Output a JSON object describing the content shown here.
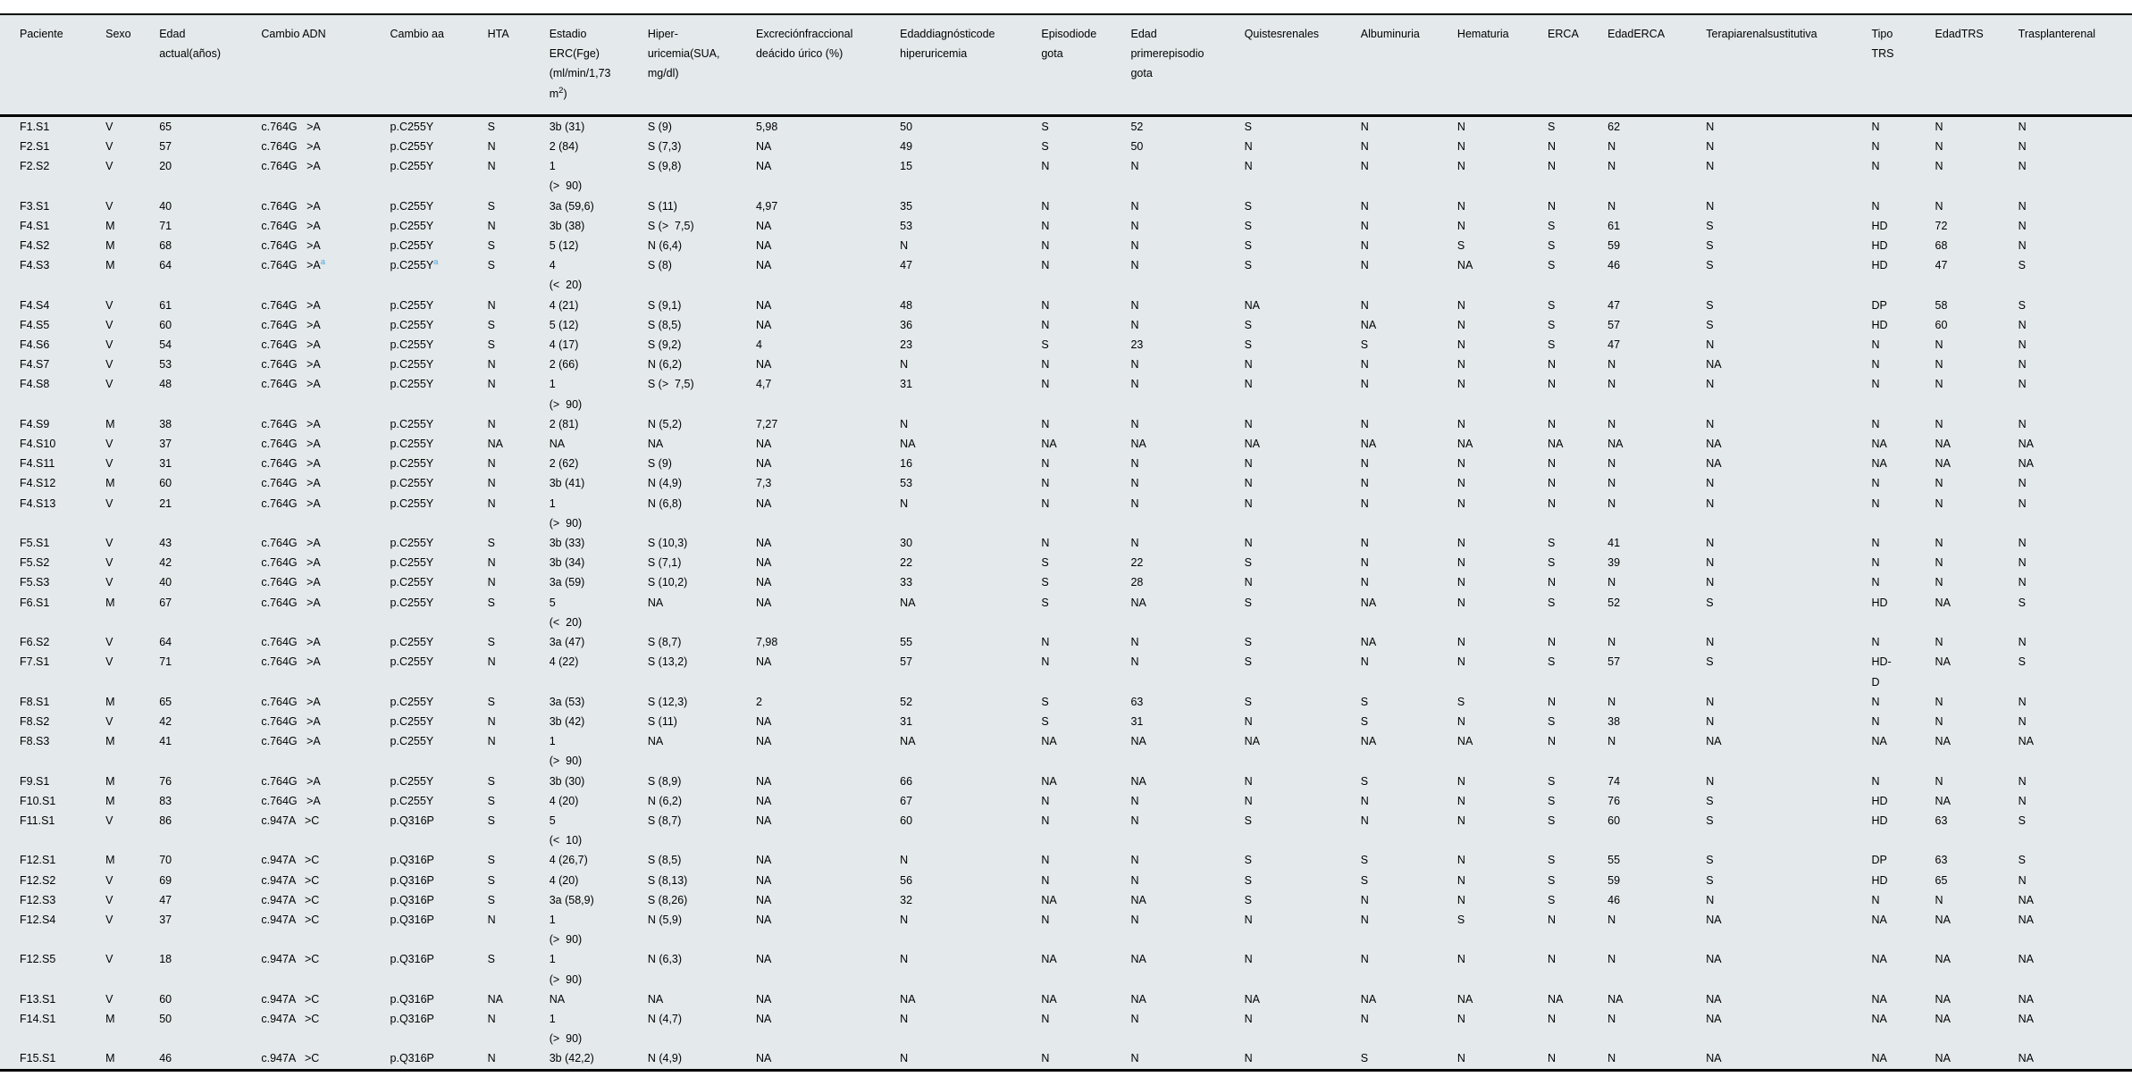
{
  "table": {
    "colors": {
      "background": "#e4e9eb",
      "border": "#000000",
      "text": "#000000",
      "footnote_marker": "#4ea7dc"
    },
    "footnote_marker": "a",
    "columns": [
      "Paciente",
      "Sexo",
      "Edad\nactual(años)",
      "Cambio ADN",
      "Cambio aa",
      "HTA",
      "Estadio\nERC(Fge)\n(ml/min/1,73\nm^2)",
      "Hiper-\nuricemia(SUA,\nmg/dl)",
      "Excreciónfraccional\ndeácido úrico (%)",
      "Edaddiagnósticode\nhiperuricemia",
      "Episodiode\ngota",
      "Edad\nprimerepisodio\ngota",
      "Quistesrenales",
      "Albuminuria",
      "Hematuria",
      "ERCA",
      "EdadERCA",
      "Terapiarenalsustitutiva",
      "Tipo\nTRS",
      "EdadTRS",
      "Trasplanterenal"
    ],
    "rows": [
      [
        "F1.S1",
        "V",
        "65",
        "c.764G   >A",
        "p.C255Y",
        "S",
        "3b (31)",
        "S (9)",
        "5,98",
        "50",
        "S",
        "52",
        "S",
        "N",
        "N",
        "S",
        "62",
        "N",
        "N",
        "N",
        "N"
      ],
      [
        "F2.S1",
        "V",
        "57",
        "c.764G   >A",
        "p.C255Y",
        "N",
        "2 (84)",
        "S (7,3)",
        "NA",
        "49",
        "S",
        "50",
        "N",
        "N",
        "N",
        "N",
        "N",
        "N",
        "N",
        "N",
        "N"
      ],
      [
        "F2.S2",
        "V",
        "20",
        "c.764G   >A",
        "p.C255Y",
        "N",
        "1\n(>  90)",
        "S (9,8)",
        "NA",
        "15",
        "N",
        "N",
        "N",
        "N",
        "N",
        "N",
        "N",
        "N",
        "N",
        "N",
        "N"
      ],
      [
        "F3.S1",
        "V",
        "40",
        "c.764G   >A",
        "p.C255Y",
        "S",
        "3a (59,6)",
        "S (11)",
        "4,97",
        "35",
        "N",
        "N",
        "S",
        "N",
        "N",
        "N",
        "N",
        "N",
        "N",
        "N",
        "N"
      ],
      [
        "F4.S1",
        "M",
        "71",
        "c.764G   >A",
        "p.C255Y",
        "N",
        "3b (38)",
        "S (>  7,5)",
        "NA",
        "53",
        "N",
        "N",
        "S",
        "N",
        "N",
        "S",
        "61",
        "S",
        "HD",
        "72",
        "N"
      ],
      [
        "F4.S2",
        "M",
        "68",
        "c.764G   >A",
        "p.C255Y",
        "S",
        "5 (12)",
        "N (6,4)",
        "NA",
        "N",
        "N",
        "N",
        "S",
        "N",
        "S",
        "S",
        "59",
        "S",
        "HD",
        "68",
        "N"
      ],
      [
        "F4.S3",
        "M",
        "64",
        "c.764G   >A^a",
        "p.C255Y^a",
        "S",
        "4\n(<  20)",
        "S (8)",
        "NA",
        "47",
        "N",
        "N",
        "S",
        "N",
        "NA",
        "S",
        "46",
        "S",
        "HD",
        "47",
        "S"
      ],
      [
        "F4.S4",
        "V",
        "61",
        "c.764G   >A",
        "p.C255Y",
        "N",
        "4 (21)",
        "S (9,1)",
        "NA",
        "48",
        "N",
        "N",
        "NA",
        "N",
        "N",
        "S",
        "47",
        "S",
        "DP",
        "58",
        "S"
      ],
      [
        "F4.S5",
        "V",
        "60",
        "c.764G   >A",
        "p.C255Y",
        "S",
        "5 (12)",
        "S (8,5)",
        "NA",
        "36",
        "N",
        "N",
        "S",
        "NA",
        "N",
        "S",
        "57",
        "S",
        "HD",
        "60",
        "N"
      ],
      [
        "F4.S6",
        "V",
        "54",
        "c.764G   >A",
        "p.C255Y",
        "S",
        "4 (17)",
        "S (9,2)",
        "4",
        "23",
        "S",
        "23",
        "S",
        "S",
        "N",
        "S",
        "47",
        "N",
        "N",
        "N",
        "N"
      ],
      [
        "F4.S7",
        "V",
        "53",
        "c.764G   >A",
        "p.C255Y",
        "N",
        "2 (66)",
        "N (6,2)",
        "NA",
        "N",
        "N",
        "N",
        "N",
        "N",
        "N",
        "N",
        "N",
        "NA",
        "N",
        "N",
        "N"
      ],
      [
        "F4.S8",
        "V",
        "48",
        "c.764G   >A",
        "p.C255Y",
        "N",
        "1\n(>  90)",
        "S (>  7,5)",
        "4,7",
        "31",
        "N",
        "N",
        "N",
        "N",
        "N",
        "N",
        "N",
        "N",
        "N",
        "N",
        "N"
      ],
      [
        "F4.S9",
        "M",
        "38",
        "c.764G   >A",
        "p.C255Y",
        "N",
        "2 (81)",
        "N (5,2)",
        "7,27",
        "N",
        "N",
        "N",
        "N",
        "N",
        "N",
        "N",
        "N",
        "N",
        "N",
        "N",
        "N"
      ],
      [
        "F4.S10",
        "V",
        "37",
        "c.764G   >A",
        "p.C255Y",
        "NA",
        "NA",
        "NA",
        "NA",
        "NA",
        "NA",
        "NA",
        "NA",
        "NA",
        "NA",
        "NA",
        "NA",
        "NA",
        "NA",
        "NA",
        "NA"
      ],
      [
        "F4.S11",
        "V",
        "31",
        "c.764G   >A",
        "p.C255Y",
        "N",
        "2 (62)",
        "S (9)",
        "NA",
        "16",
        "N",
        "N",
        "N",
        "N",
        "N",
        "N",
        "N",
        "NA",
        "NA",
        "NA",
        "NA"
      ],
      [
        "F4.S12",
        "M",
        "60",
        "c.764G   >A",
        "p.C255Y",
        "N",
        "3b (41)",
        "N (4,9)",
        "7,3",
        "53",
        "N",
        "N",
        "N",
        "N",
        "N",
        "N",
        "N",
        "N",
        "N",
        "N",
        "N"
      ],
      [
        "F4.S13",
        "V",
        "21",
        "c.764G   >A",
        "p.C255Y",
        "N",
        "1\n(>  90)",
        "N (6,8)",
        "NA",
        "N",
        "N",
        "N",
        "N",
        "N",
        "N",
        "N",
        "N",
        "N",
        "N",
        "N",
        "N"
      ],
      [
        "F5.S1",
        "V",
        "43",
        "c.764G   >A",
        "p.C255Y",
        "S",
        "3b (33)",
        "S (10,3)",
        "NA",
        "30",
        "N",
        "N",
        "N",
        "N",
        "N",
        "S",
        "41",
        "N",
        "N",
        "N",
        "N"
      ],
      [
        "F5.S2",
        "V",
        "42",
        "c.764G   >A",
        "p.C255Y",
        "N",
        "3b (34)",
        "S (7,1)",
        "NA",
        "22",
        "S",
        "22",
        "S",
        "N",
        "N",
        "S",
        "39",
        "N",
        "N",
        "N",
        "N"
      ],
      [
        "F5.S3",
        "V",
        "40",
        "c.764G   >A",
        "p.C255Y",
        "N",
        "3a (59)",
        "S (10,2)",
        "NA",
        "33",
        "S",
        "28",
        "N",
        "N",
        "N",
        "N",
        "N",
        "N",
        "N",
        "N",
        "N"
      ],
      [
        "F6.S1",
        "M",
        "67",
        "c.764G   >A",
        "p.C255Y",
        "S",
        "5\n(<  20)",
        "NA",
        "NA",
        "NA",
        "S",
        "NA",
        "S",
        "NA",
        "N",
        "S",
        "52",
        "S",
        "HD",
        "NA",
        "S"
      ],
      [
        "F6.S2",
        "V",
        "64",
        "c.764G   >A",
        "p.C255Y",
        "S",
        "3a (47)",
        "S (8,7)",
        "7,98",
        "55",
        "N",
        "N",
        "S",
        "NA",
        "N",
        "N",
        "N",
        "N",
        "N",
        "N",
        "N"
      ],
      [
        "F7.S1",
        "V",
        "71",
        "c.764G   >A",
        "p.C255Y",
        "N",
        "4 (22)",
        "S (13,2)",
        "NA",
        "57",
        "N",
        "N",
        "S",
        "N",
        "N",
        "S",
        "57",
        "S",
        "HD-\nD",
        "NA",
        "S"
      ],
      [
        "F8.S1",
        "M",
        "65",
        "c.764G   >A",
        "p.C255Y",
        "S",
        "3a (53)",
        "S (12,3)",
        "2",
        "52",
        "S",
        "63",
        "S",
        "S",
        "S",
        "N",
        "N",
        "N",
        "N",
        "N",
        "N"
      ],
      [
        "F8.S2",
        "V",
        "42",
        "c.764G   >A",
        "p.C255Y",
        "N",
        "3b (42)",
        "S (11)",
        "NA",
        "31",
        "S",
        "31",
        "N",
        "S",
        "N",
        "S",
        "38",
        "N",
        "N",
        "N",
        "N"
      ],
      [
        "F8.S3",
        "M",
        "41",
        "c.764G   >A",
        "p.C255Y",
        "N",
        "1\n(>  90)",
        "NA",
        "NA",
        "NA",
        "NA",
        "NA",
        "NA",
        "NA",
        "NA",
        "N",
        "N",
        "NA",
        "NA",
        "NA",
        "NA"
      ],
      [
        "F9.S1",
        "M",
        "76",
        "c.764G   >A",
        "p.C255Y",
        "S",
        "3b (30)",
        "S (8,9)",
        "NA",
        "66",
        "NA",
        "NA",
        "N",
        "S",
        "N",
        "S",
        "74",
        "N",
        "N",
        "N",
        "N"
      ],
      [
        "F10.S1",
        "M",
        "83",
        "c.764G   >A",
        "p.C255Y",
        "S",
        "4 (20)",
        "N (6,2)",
        "NA",
        "67",
        "N",
        "N",
        "N",
        "N",
        "N",
        "S",
        "76",
        "S",
        "HD",
        "NA",
        "N"
      ],
      [
        "F11.S1",
        "V",
        "86",
        "c.947A   >C",
        "p.Q316P",
        "S",
        "5\n(<  10)",
        "S (8,7)",
        "NA",
        "60",
        "N",
        "N",
        "S",
        "N",
        "N",
        "S",
        "60",
        "S",
        "HD",
        "63",
        "S"
      ],
      [
        "F12.S1",
        "M",
        "70",
        "c.947A   >C",
        "p.Q316P",
        "S",
        "4 (26,7)",
        "S (8,5)",
        "NA",
        "N",
        "N",
        "N",
        "S",
        "S",
        "N",
        "S",
        "55",
        "S",
        "DP",
        "63",
        "S"
      ],
      [
        "F12.S2",
        "V",
        "69",
        "c.947A   >C",
        "p.Q316P",
        "S",
        "4 (20)",
        "S (8,13)",
        "NA",
        "56",
        "N",
        "N",
        "S",
        "S",
        "N",
        "S",
        "59",
        "S",
        "HD",
        "65",
        "N"
      ],
      [
        "F12.S3",
        "V",
        "47",
        "c.947A   >C",
        "p.Q316P",
        "S",
        "3a (58,9)",
        "S (8,26)",
        "NA",
        "32",
        "NA",
        "NA",
        "S",
        "N",
        "N",
        "S",
        "46",
        "N",
        "N",
        "N",
        "NA"
      ],
      [
        "F12.S4",
        "V",
        "37",
        "c.947A   >C",
        "p.Q316P",
        "N",
        "1\n(>  90)",
        "N (5,9)",
        "NA",
        "N",
        "N",
        "N",
        "N",
        "N",
        "S",
        "N",
        "N",
        "NA",
        "NA",
        "NA",
        "NA"
      ],
      [
        "F12.S5",
        "V",
        "18",
        "c.947A   >C",
        "p.Q316P",
        "S",
        "1\n(>  90)",
        "N (6,3)",
        "NA",
        "N",
        "NA",
        "NA",
        "N",
        "N",
        "N",
        "N",
        "N",
        "NA",
        "NA",
        "NA",
        "NA"
      ],
      [
        "F13.S1",
        "V",
        "60",
        "c.947A   >C",
        "p.Q316P",
        "NA",
        "NA",
        "NA",
        "NA",
        "NA",
        "NA",
        "NA",
        "NA",
        "NA",
        "NA",
        "NA",
        "NA",
        "NA",
        "NA",
        "NA",
        "NA"
      ],
      [
        "F14.S1",
        "M",
        "50",
        "c.947A   >C",
        "p.Q316P",
        "N",
        "1\n(>  90)",
        "N (4,7)",
        "NA",
        "N",
        "N",
        "N",
        "N",
        "N",
        "N",
        "N",
        "N",
        "NA",
        "NA",
        "NA",
        "NA"
      ],
      [
        "F15.S1",
        "M",
        "46",
        "c.947A   >C",
        "p.Q316P",
        "N",
        "3b (42,2)",
        "N (4,9)",
        "NA",
        "N",
        "N",
        "N",
        "N",
        "S",
        "N",
        "N",
        "N",
        "NA",
        "NA",
        "NA",
        "NA"
      ]
    ]
  }
}
